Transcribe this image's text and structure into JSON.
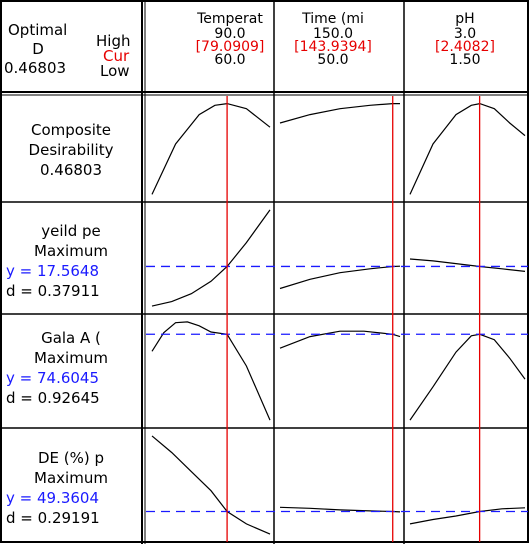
{
  "optimal": {
    "title_line1": "Optimal",
    "title_line2": "D",
    "d_value": "0.46803",
    "high_label": "High",
    "cur_label": "Cur",
    "low_label": "Low"
  },
  "factors": [
    {
      "name": "Temperat",
      "high": "90.0",
      "cur": "[79.0909]",
      "low": "60.0",
      "high_num": 90.0,
      "cur_num": 79.0909,
      "low_num": 60.0
    },
    {
      "name": "Time (mi",
      "high": "150.0",
      "cur": "[143.9394]",
      "low": "50.0",
      "high_num": 150.0,
      "cur_num": 143.9394,
      "low_num": 50.0
    },
    {
      "name": "pH",
      "high": "3.0",
      "cur": "[2.4082]",
      "low": "1.50",
      "high_num": 3.0,
      "cur_num": 2.4082,
      "low_num": 1.5
    }
  ],
  "responses": [
    {
      "title_line1": "Composite",
      "title_line2": "Desirability",
      "value_line": "0.46803",
      "d_line": ""
    },
    {
      "title_line1": "yeild pe",
      "title_line2": "Maximum",
      "value_line": "y = 17.5648",
      "d_line": "d = 0.37911"
    },
    {
      "title_line1": "Gala A (",
      "title_line2": "Maximum",
      "value_line": "y = 74.6045",
      "d_line": "d = 0.92645"
    },
    {
      "title_line1": "DE (%) p",
      "title_line2": "Maximum",
      "value_line": "y = 49.3604",
      "d_line": "d = 0.29191"
    }
  ],
  "colors": {
    "frame": "#000000",
    "current_line": "#e60000",
    "response_line": "#1a1aff",
    "curve": "#000000"
  },
  "chart_data": {
    "type": "line",
    "title": "",
    "factors": [
      "Temperat",
      "Time (mi",
      "pH"
    ],
    "factor_ranges": [
      [
        60.0,
        90.0
      ],
      [
        50.0,
        150.0
      ],
      [
        1.5,
        3.0
      ]
    ],
    "current_settings": [
      79.0909,
      143.9394,
      2.4082
    ],
    "grid": false,
    "responses": [
      {
        "name": "Composite Desirability",
        "current": 0.46803,
        "traces": [
          {
            "x": [
              60,
              66,
              72,
              76,
              79.09,
              84,
              90
            ],
            "y": [
              0.36,
              0.42,
              0.455,
              0.466,
              0.468,
              0.462,
              0.44
            ]
          },
          {
            "x": [
              50,
              75,
              100,
              125,
              143.94,
              150
            ],
            "y": [
              0.445,
              0.455,
              0.462,
              0.466,
              0.468,
              0.468
            ]
          },
          {
            "x": [
              1.5,
              1.8,
              2.1,
              2.3,
              2.41,
              2.6,
              2.8,
              3.0
            ],
            "y": [
              0.36,
              0.42,
              0.455,
              0.466,
              0.468,
              0.462,
              0.445,
              0.43
            ]
          }
        ]
      },
      {
        "name": "yeild pe",
        "goal": "Maximum",
        "current": 17.5648,
        "desirability": 0.37911,
        "traces": [
          {
            "x": [
              60,
              65,
              70,
              75,
              79.09,
              84,
              90
            ],
            "y": [
              11.5,
              12.2,
              13.4,
              15.3,
              17.56,
              21.2,
              26.2
            ]
          },
          {
            "x": [
              50,
              75,
              100,
              125,
              143.94,
              150
            ],
            "y": [
              14.2,
              15.6,
              16.6,
              17.2,
              17.56,
              17.6
            ]
          },
          {
            "x": [
              1.5,
              1.8,
              2.1,
              2.41,
              2.7,
              3.0
            ],
            "y": [
              18.7,
              18.4,
              18.0,
              17.56,
              17.2,
              16.8
            ]
          }
        ]
      },
      {
        "name": "Gala A (",
        "goal": "Maximum",
        "current": 74.6045,
        "desirability": 0.92645,
        "traces": [
          {
            "x": [
              60,
              63,
              66,
              69,
              72,
              75,
              79.09,
              84,
              90
            ],
            "y": [
              72.4,
              74.8,
              76.1,
              76.2,
              75.7,
              74.9,
              74.6,
              70.5,
              63.5
            ]
          },
          {
            "x": [
              50,
              75,
              100,
              120,
              143.94,
              150
            ],
            "y": [
              72.8,
              74.3,
              75.0,
              75.0,
              74.6,
              74.3
            ]
          },
          {
            "x": [
              1.5,
              1.8,
              2.1,
              2.3,
              2.41,
              2.6,
              2.8,
              3.0
            ],
            "y": [
              63.5,
              67.8,
              72.3,
              74.4,
              74.6,
              73.9,
              71.5,
              68.8
            ]
          }
        ]
      },
      {
        "name": "DE (%) p",
        "goal": "Maximum",
        "current": 49.3604,
        "desirability": 0.29191,
        "traces": [
          {
            "x": [
              60,
              65,
              70,
              75,
              79.09,
              84,
              90
            ],
            "y": [
              79.0,
              72.5,
              65.0,
              57.5,
              49.36,
              44.5,
              40.5
            ]
          },
          {
            "x": [
              50,
              75,
              100,
              125,
              143.94,
              150
            ],
            "y": [
              51.0,
              50.6,
              50.0,
              49.6,
              49.36,
              49.2
            ]
          },
          {
            "x": [
              1.5,
              1.8,
              2.1,
              2.41,
              2.7,
              3.0
            ],
            "y": [
              44.5,
              46.2,
              47.6,
              49.36,
              50.4,
              50.8
            ]
          }
        ]
      }
    ]
  }
}
